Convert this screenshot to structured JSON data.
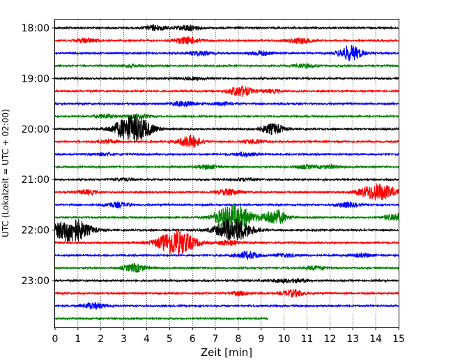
{
  "chart_data": {
    "type": "line",
    "chart_kind": "helicorder",
    "xlabel": "Zeit  [min]",
    "ylabel": "UTC (Lokalzeit = UTC + 02:00)",
    "x_ticks": [
      "0",
      "1",
      "2",
      "3",
      "4",
      "5",
      "6",
      "7",
      "8",
      "9",
      "10",
      "11",
      "12",
      "13",
      "14",
      "15"
    ],
    "xlim": [
      0,
      15
    ],
    "y_ticks": [
      "18:00",
      "19:00",
      "20:00",
      "21:00",
      "22:00",
      "23:00"
    ],
    "trace_interval_min": 15,
    "grid": "vertical dotted at each minute",
    "trace_colors": [
      "#000000",
      "#ff0000",
      "#0000ff",
      "#008000"
    ],
    "traces": [
      {
        "start": "18:00",
        "color": "#000000",
        "events": [
          {
            "t": 4.4,
            "amp": 0.4
          },
          {
            "t": 5.8,
            "amp": 0.45
          }
        ]
      },
      {
        "start": "18:15",
        "color": "#ff0000",
        "events": [
          {
            "t": 1.3,
            "amp": 0.35
          },
          {
            "t": 5.6,
            "amp": 0.35
          },
          {
            "t": 6.0,
            "amp": 0.3
          },
          {
            "t": 10.7,
            "amp": 0.45
          }
        ]
      },
      {
        "start": "18:30",
        "color": "#0000ff",
        "events": [
          {
            "t": 6.3,
            "amp": 0.35
          },
          {
            "t": 9.0,
            "amp": 0.35
          },
          {
            "t": 12.9,
            "amp": 1.2
          }
        ]
      },
      {
        "start": "18:45",
        "color": "#008000",
        "events": [
          {
            "t": 3.3,
            "amp": 0.2
          },
          {
            "t": 10.9,
            "amp": 0.3
          }
        ]
      },
      {
        "start": "19:00",
        "color": "#000000",
        "events": [
          {
            "t": 6.0,
            "amp": 0.2
          }
        ]
      },
      {
        "start": "19:15",
        "color": "#ff0000",
        "events": [
          {
            "t": 8.1,
            "amp": 0.85
          },
          {
            "t": 9.5,
            "amp": 0.25
          }
        ]
      },
      {
        "start": "19:30",
        "color": "#0000ff",
        "events": [
          {
            "t": 5.6,
            "amp": 0.4
          },
          {
            "t": 7.3,
            "amp": 0.25
          }
        ]
      },
      {
        "start": "19:45",
        "color": "#008000",
        "events": [
          {
            "t": 2.2,
            "amp": 0.3
          },
          {
            "t": 3.6,
            "amp": 0.35
          }
        ]
      },
      {
        "start": "20:00",
        "color": "#000000",
        "events": [
          {
            "t": 3.4,
            "amp": 2.2
          },
          {
            "t": 9.5,
            "amp": 0.85
          }
        ]
      },
      {
        "start": "20:15",
        "color": "#ff0000",
        "events": [
          {
            "t": 2.3,
            "amp": 0.25
          },
          {
            "t": 5.9,
            "amp": 0.95
          },
          {
            "t": 8.7,
            "amp": 0.3
          }
        ]
      },
      {
        "start": "20:30",
        "color": "#0000ff",
        "events": [
          {
            "t": 2.1,
            "amp": 0.2
          },
          {
            "t": 8.3,
            "amp": 0.3
          }
        ]
      },
      {
        "start": "20:45",
        "color": "#008000",
        "events": [
          {
            "t": 6.7,
            "amp": 0.3
          },
          {
            "t": 10.9,
            "amp": 0.25
          },
          {
            "t": 12.0,
            "amp": 0.25
          }
        ]
      },
      {
        "start": "21:00",
        "color": "#000000",
        "events": [
          {
            "t": 3.0,
            "amp": 0.2
          },
          {
            "t": 8.3,
            "amp": 0.2
          }
        ]
      },
      {
        "start": "21:15",
        "color": "#ff0000",
        "events": [
          {
            "t": 1.4,
            "amp": 0.35
          },
          {
            "t": 7.6,
            "amp": 0.5
          },
          {
            "t": 14.1,
            "amp": 1.3
          }
        ]
      },
      {
        "start": "21:30",
        "color": "#0000ff",
        "events": [
          {
            "t": 2.7,
            "amp": 0.4
          },
          {
            "t": 12.8,
            "amp": 0.4
          }
        ]
      },
      {
        "start": "21:45",
        "color": "#008000",
        "events": [
          {
            "t": 7.8,
            "amp": 2.0
          },
          {
            "t": 9.6,
            "amp": 1.2
          },
          {
            "t": 14.9,
            "amp": 0.6
          }
        ]
      },
      {
        "start": "22:00",
        "color": "#000000",
        "events": [
          {
            "t": 0.7,
            "amp": 2.0
          },
          {
            "t": 7.8,
            "amp": 1.8
          }
        ]
      },
      {
        "start": "22:15",
        "color": "#ff0000",
        "events": [
          {
            "t": 5.3,
            "amp": 2.1
          },
          {
            "t": 7.6,
            "amp": 0.4
          }
        ]
      },
      {
        "start": "22:30",
        "color": "#0000ff",
        "events": [
          {
            "t": 8.4,
            "amp": 0.6
          },
          {
            "t": 10.1,
            "amp": 0.25
          },
          {
            "t": 13.4,
            "amp": 0.25
          }
        ]
      },
      {
        "start": "22:45",
        "color": "#008000",
        "events": [
          {
            "t": 3.5,
            "amp": 0.65
          },
          {
            "t": 11.4,
            "amp": 0.3
          }
        ]
      },
      {
        "start": "23:00",
        "color": "#000000",
        "events": [
          {
            "t": 9.8,
            "amp": 0.25
          },
          {
            "t": 10.6,
            "amp": 0.25
          }
        ]
      },
      {
        "start": "23:15",
        "color": "#ff0000",
        "events": [
          {
            "t": 8.1,
            "amp": 0.3
          },
          {
            "t": 10.4,
            "amp": 0.55
          }
        ]
      },
      {
        "start": "23:30",
        "color": "#0000ff",
        "events": [
          {
            "t": 1.7,
            "amp": 0.5
          }
        ]
      },
      {
        "start": "23:45",
        "color": "#008000",
        "end_min": 9.3,
        "events": []
      }
    ]
  }
}
